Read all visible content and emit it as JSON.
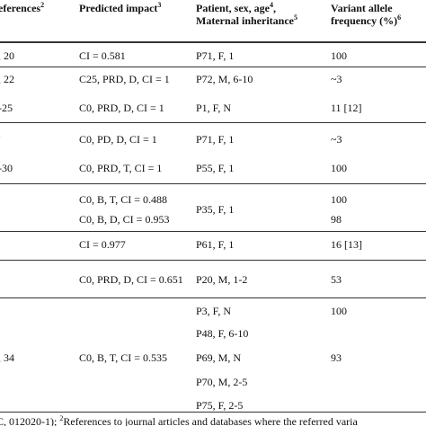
{
  "header": {
    "references": {
      "text": "eferences",
      "sup": "2"
    },
    "impact": {
      "text": "Predicted impact",
      "sup": "3"
    },
    "patient": {
      "line1": "Patient, sex, age",
      "sup1": "4",
      "comma": ",",
      "line2": "Maternal inheritance",
      "sup2": "5"
    },
    "vaf": {
      "line1": "Variant allele",
      "line2": "frequency (%)",
      "sup": "6"
    }
  },
  "table": {
    "rows": [
      {
        "ref": ", 20",
        "impact": "CI = 0.581",
        "patient": "P71, F, 1",
        "vaf": "100"
      },
      {
        "ref": ", 22",
        "impact": "C25, PRD, D, CI = 1",
        "patient": "P72, M, 6-10",
        "vaf": "~3"
      },
      {
        "ref": "-25",
        "impact": "C0, PRD, D, CI = 1",
        "patient": "P1, F, N",
        "vaf": "11 [12]"
      },
      {
        "ref": ".",
        "impact": "C0, PD, D, CI = 1",
        "patient": "P71, F, 1",
        "vaf": "~3"
      },
      {
        "ref": "-30",
        "impact": "C0, PRD, T, CI = 1",
        "patient": "P55, F, 1",
        "vaf": "100"
      },
      {
        "impact": "C0, B, T, CI = 0.488",
        "patient": "P35, F, 1",
        "vaf": "100"
      },
      {
        "impact": "C0, B, D, CI = 0.953",
        "vaf": "98"
      },
      {
        "impact": "CI = 0.977",
        "patient": "P61, F, 1",
        "vaf": "16 [13]"
      },
      {
        "impact": "C0, PRD, D, CI = 0.651",
        "patient": "P20, M, 1-2",
        "vaf": "53"
      },
      {
        "patient": "P3, F, N",
        "vaf": "100"
      },
      {
        "patient": "P48, F, 6-10"
      },
      {
        "ref": ", 34",
        "impact": "C0, B, T, CI = 0.535",
        "patient": "P69, M, N",
        "vaf": "93"
      },
      {
        "patient": "P70, M, 2-5"
      },
      {
        "patient": "P75, F, 2-5"
      }
    ]
  },
  "footer": {
    "lead": "C, 012020-1); ",
    "sup": "2",
    "text": "References to journal articles and databases where the referred varia"
  }
}
